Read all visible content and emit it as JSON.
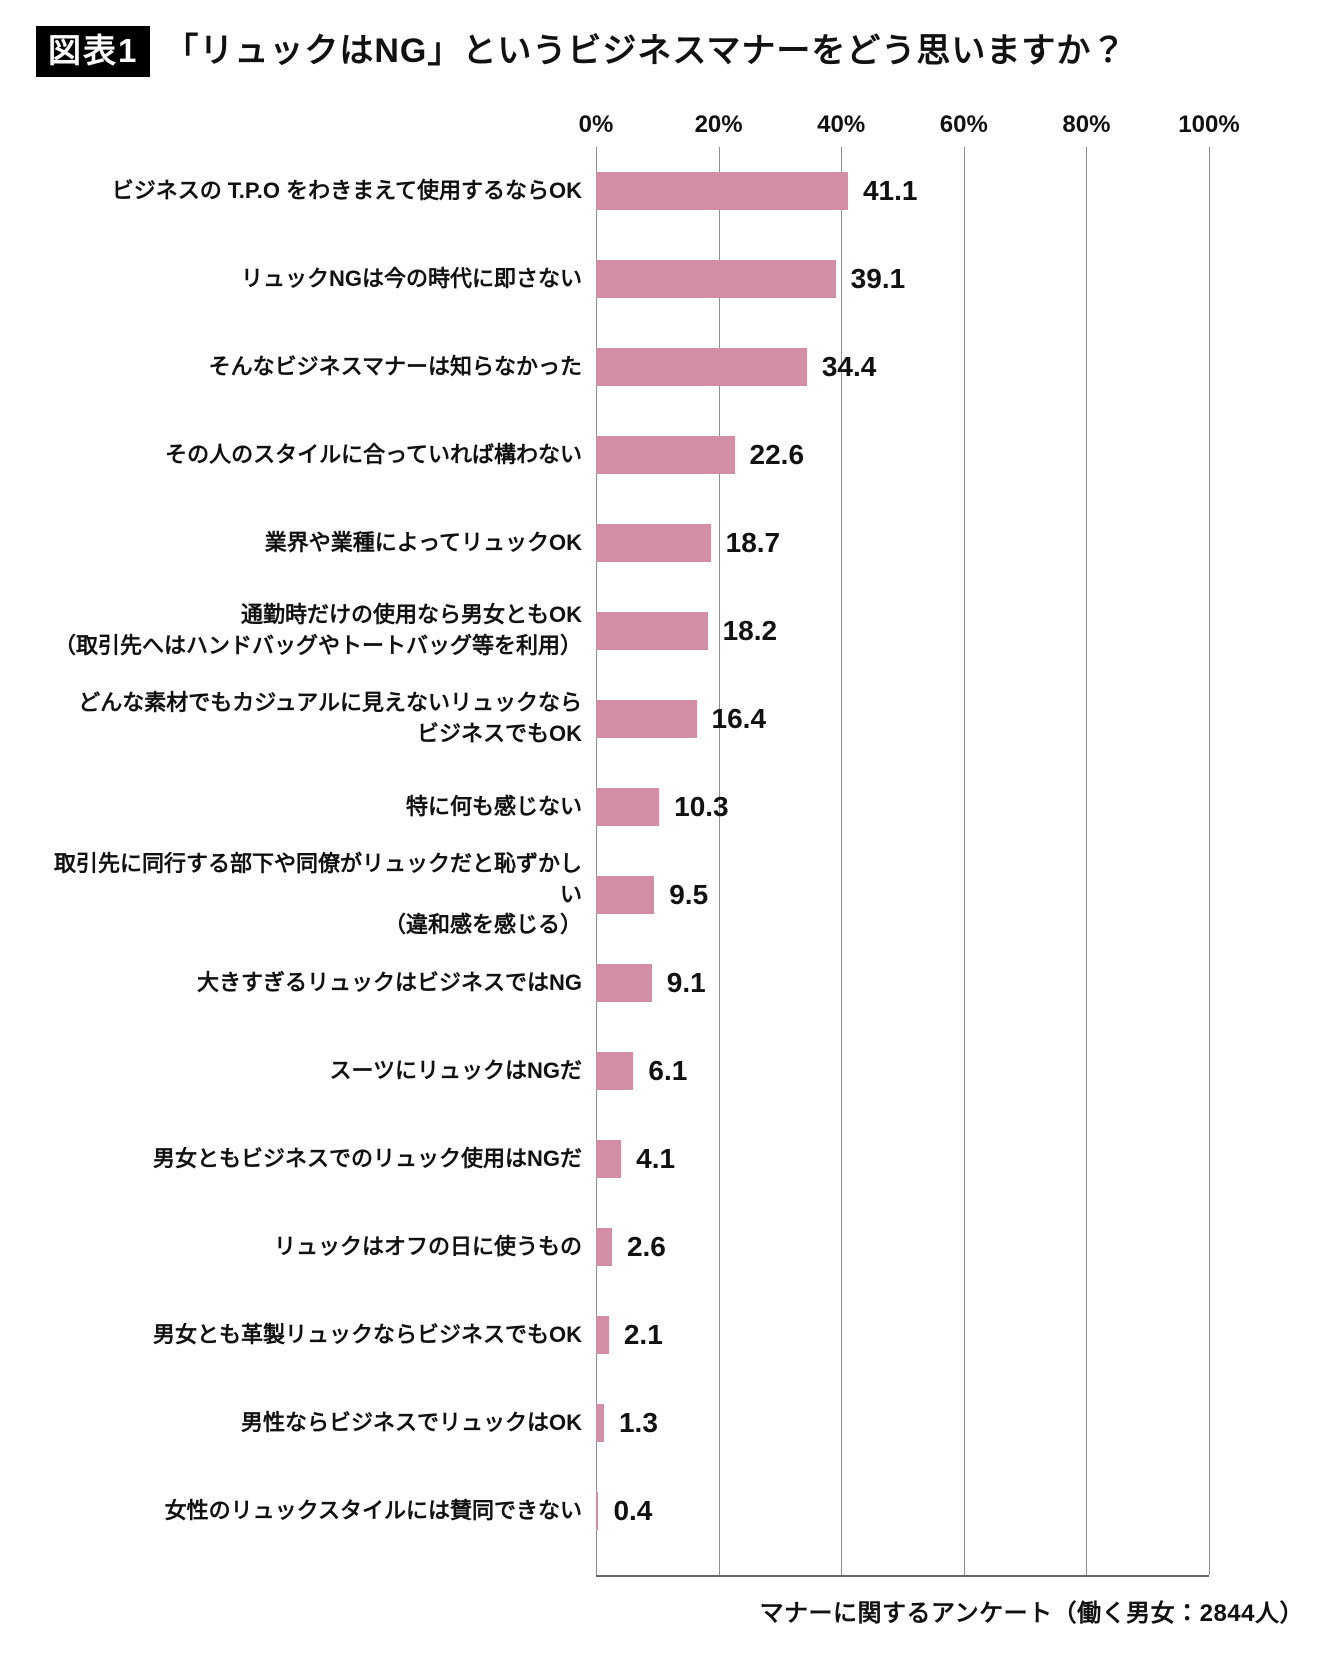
{
  "header": {
    "badge": "図表1",
    "title": "「リュックはNG」というビジネスマナーをどう思いますか？"
  },
  "chart_data": {
    "type": "bar",
    "orientation": "horizontal",
    "title": "「リュックはNG」というビジネスマナーをどう思いますか？",
    "xlabel": "",
    "ylabel": "",
    "xlim": [
      0,
      100
    ],
    "x_ticks": [
      "0%",
      "20%",
      "40%",
      "60%",
      "80%",
      "100%"
    ],
    "grid": true,
    "bar_color": "#d28fa4",
    "categories": [
      "ビジネスの T.P.O をわきまえて使用するならOK",
      "リュックNGは今の時代に即さない",
      "そんなビジネスマナーは知らなかった",
      "その人のスタイルに合っていれば構わない",
      "業界や業種によってリュックOK",
      "通勤時だけの使用なら男女ともOK\n（取引先へはハンドバッグやトートバッグ等を利用）",
      "どんな素材でもカジュアルに見えないリュックなら\nビジネスでもOK",
      "特に何も感じない",
      "取引先に同行する部下や同僚がリュックだと恥ずかしい\n（違和感を感じる）",
      "大きすぎるリュックはビジネスではNG",
      "スーツにリュックはNGだ",
      "男女ともビジネスでのリュック使用はNGだ",
      "リュックはオフの日に使うもの",
      "男女とも革製リュックならビジネスでもOK",
      "男性ならビジネスでリュックはOK",
      "女性のリュックスタイルには賛同できない"
    ],
    "values": [
      41.1,
      39.1,
      34.4,
      22.6,
      18.7,
      18.2,
      16.4,
      10.3,
      9.5,
      9.1,
      6.1,
      4.1,
      2.6,
      2.1,
      1.3,
      0.4
    ]
  },
  "footer": {
    "note": "マナーに関するアンケート（働く男女：2844人）"
  }
}
